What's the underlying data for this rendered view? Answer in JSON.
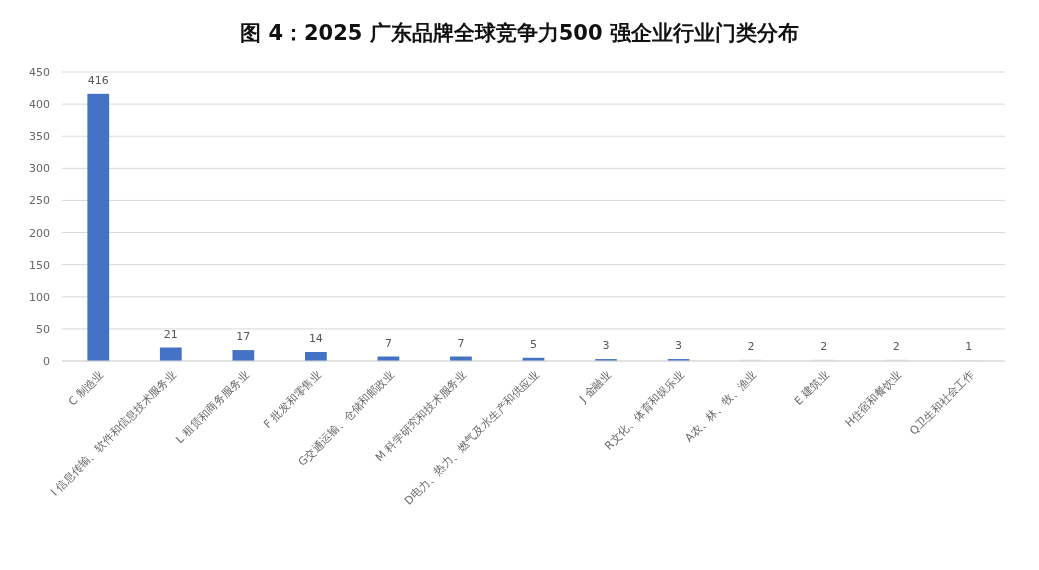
{
  "chart_data": {
    "type": "bar",
    "title": "图 4：2025 广东品牌全球竞争力500 强企业行业门类分布",
    "categories": [
      "C 制造业",
      "I 信息传输、软件和信息技术服务业",
      "L 租赁和商务服务业",
      "F 批发和零售业",
      "G交通运输、仓储和邮政业",
      "M 科学研究和技术服务业",
      "D电力、热力、燃气及水生产和供应业",
      "J 金融业",
      "R文化、体育和娱乐业",
      "A农、林、牧、渔业",
      "E 建筑业",
      "H住宿和餐饮业",
      "Q卫生和社会工作"
    ],
    "values": [
      416,
      21,
      17,
      14,
      7,
      7,
      5,
      3,
      3,
      2,
      2,
      2,
      1
    ],
    "colors": [
      "#4472c4",
      "#4472c4",
      "#4472c4",
      "#4472c4",
      "#4472c4",
      "#4472c4",
      "#4472c4",
      "#4472c4",
      "#4472c4",
      "#d9d9d9",
      "#d9d9d9",
      "#d9d9d9",
      "#d9d9d9"
    ],
    "ylim": [
      0,
      450
    ],
    "yticks": [
      0,
      50,
      100,
      150,
      200,
      250,
      300,
      350,
      400,
      450
    ],
    "grid": "y",
    "data_labels": true
  }
}
